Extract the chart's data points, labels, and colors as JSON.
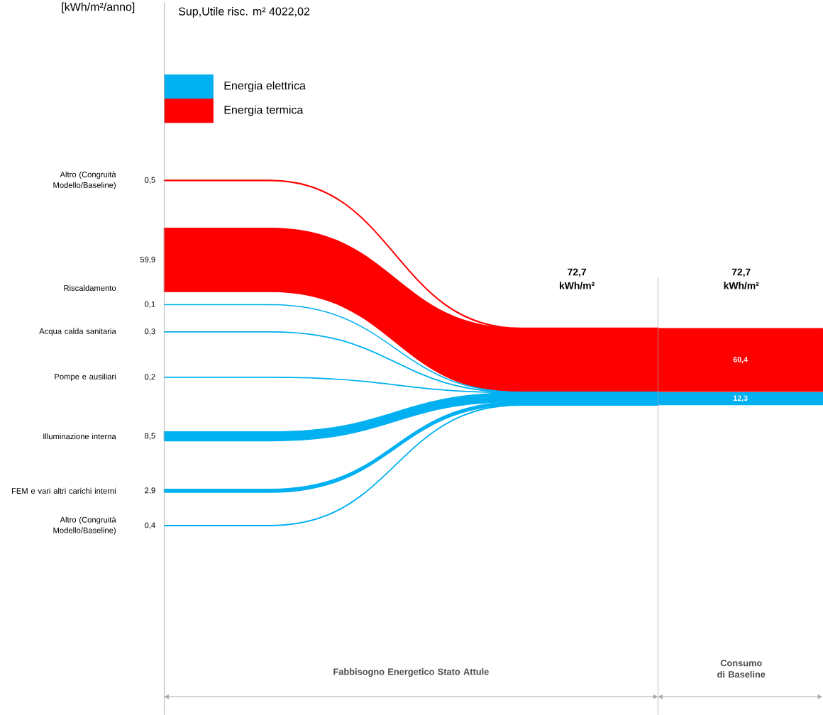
{
  "chart_data": {
    "type": "other",
    "title": "Sup,Utile risc. m² 4022,02",
    "ylabel": "[kWh/m²/anno]",
    "categories": [
      "Altro (Congruità Modello/Baseline)",
      "Riscaldamento",
      "Acqua calda sanitaria",
      "Pompe e ausiliari",
      "Illuminazione interna",
      "FEM e vari altri carichi interni",
      "Altro (Congruità Modello/Baseline)"
    ],
    "series": [
      {
        "name": "Energia elettrica",
        "color": "#00b0f0",
        "values": [
          null,
          0.1,
          0.3,
          0.2,
          8.5,
          2.9,
          0.4
        ],
        "value_labels": [
          null,
          "0,1",
          "0,3",
          "0,2",
          "8,5",
          "2,9",
          "0,4"
        ]
      },
      {
        "name": "Energia termica",
        "color": "#ff0000",
        "values": [
          0.5,
          59.9,
          null,
          null,
          null,
          null,
          null
        ],
        "value_labels": [
          "0,5",
          "59,9",
          null,
          null,
          null,
          null,
          null
        ]
      }
    ],
    "totals": [
      "12,3",
      "60,4"
    ],
    "legend": "top left",
    "annotations": [
      "72,7 kWh/m²",
      "72,7 kWh/m²",
      "Fabbisogno Energetico Stato Attule",
      "Consumo di Baseline"
    ]
  }
}
